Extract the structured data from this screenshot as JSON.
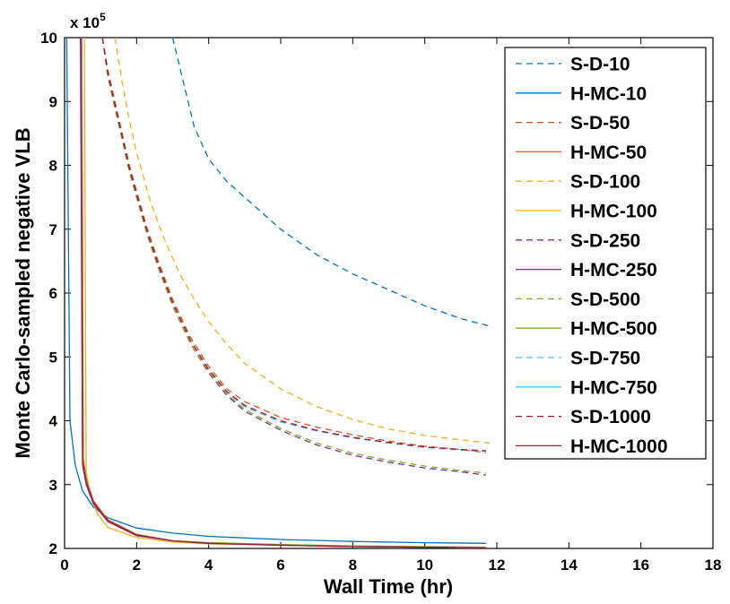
{
  "chart_data": {
    "type": "line",
    "title": "",
    "xlabel": "Wall Time (hr)",
    "ylabel": "Monte Carlo-sampled negative VLB",
    "y_multiplier": "x 10",
    "y_multiplier_exp": "5",
    "xlim": [
      0,
      18
    ],
    "ylim": [
      2,
      10
    ],
    "xticks": [
      "0",
      "2",
      "4",
      "6",
      "8",
      "10",
      "12",
      "14",
      "16",
      "18"
    ],
    "yticks": [
      "2",
      "3",
      "4",
      "5",
      "6",
      "7",
      "8",
      "9",
      "10"
    ],
    "legend_position": "top-right",
    "series": [
      {
        "name": "S-D-10",
        "color": "#0072BD",
        "dashed": true,
        "x": [
          3.0,
          3.3,
          3.6,
          4.0,
          4.5,
          5.0,
          6.0,
          7.0,
          8.0,
          9.0,
          10.0,
          11.0,
          11.8
        ],
        "y": [
          10.0,
          9.3,
          8.6,
          8.1,
          7.75,
          7.5,
          7.0,
          6.6,
          6.3,
          6.05,
          5.8,
          5.6,
          5.48
        ]
      },
      {
        "name": "H-MC-10",
        "color": "#0072BD",
        "dashed": false,
        "x": [
          0.06,
          0.15,
          0.3,
          0.5,
          0.8,
          1.2,
          2.0,
          3.0,
          4.0,
          6.0,
          8.0,
          10.0,
          11.7
        ],
        "y": [
          10.0,
          4.0,
          3.3,
          2.9,
          2.65,
          2.48,
          2.32,
          2.24,
          2.19,
          2.14,
          2.11,
          2.09,
          2.08
        ]
      },
      {
        "name": "S-D-50",
        "color": "#D95319",
        "dashed": true,
        "x": [
          1.05,
          1.2,
          1.4,
          1.6,
          1.8,
          2.0,
          2.3,
          2.6,
          3.0,
          3.5,
          4.0,
          4.5,
          5.0,
          6.0,
          7.0,
          8.0,
          9.0,
          10.0,
          11.0,
          11.7
        ],
        "y": [
          10.0,
          9.5,
          9.0,
          8.5,
          8.0,
          7.6,
          7.0,
          6.5,
          5.9,
          5.3,
          4.85,
          4.5,
          4.3,
          4.05,
          3.9,
          3.78,
          3.68,
          3.6,
          3.55,
          3.5
        ]
      },
      {
        "name": "H-MC-50",
        "color": "#D95319",
        "dashed": false,
        "x": [
          0.48,
          0.52,
          0.6,
          0.8,
          1.2,
          2.0,
          3.0,
          4.0,
          6.0,
          8.0,
          10.0,
          11.7
        ],
        "y": [
          10.0,
          3.4,
          3.1,
          2.75,
          2.45,
          2.22,
          2.12,
          2.09,
          2.06,
          2.03,
          2.02,
          2.02
        ]
      },
      {
        "name": "S-D-100",
        "color": "#EDB120",
        "dashed": true,
        "x": [
          1.4,
          1.6,
          1.8,
          2.0,
          2.4,
          2.8,
          3.2,
          3.6,
          4.0,
          4.5,
          5.0,
          6.0,
          7.0,
          8.0,
          9.0,
          10.0,
          11.0,
          11.8
        ],
        "y": [
          10.0,
          9.3,
          8.7,
          8.2,
          7.4,
          6.8,
          6.3,
          5.9,
          5.55,
          5.2,
          4.9,
          4.5,
          4.22,
          4.02,
          3.87,
          3.77,
          3.7,
          3.65
        ]
      },
      {
        "name": "H-MC-100",
        "color": "#EDB120",
        "dashed": false,
        "x": [
          0.55,
          0.6,
          0.7,
          0.9,
          1.2,
          2.0,
          3.0,
          4.0,
          6.0,
          8.0,
          10.0,
          11.7
        ],
        "y": [
          10.0,
          3.2,
          2.9,
          2.55,
          2.33,
          2.17,
          2.1,
          2.07,
          2.05,
          2.03,
          2.02,
          2.01
        ]
      },
      {
        "name": "S-D-250",
        "color": "#7E2F8E",
        "dashed": true,
        "x": [
          1.05,
          1.2,
          1.4,
          1.6,
          1.8,
          2.0,
          2.3,
          2.6,
          3.0,
          3.5,
          4.0,
          4.5,
          5.0,
          6.0,
          7.0,
          8.0,
          9.0,
          10.0,
          11.0,
          11.7
        ],
        "y": [
          10.0,
          9.4,
          8.9,
          8.4,
          7.9,
          7.5,
          6.9,
          6.4,
          5.8,
          5.2,
          4.75,
          4.4,
          4.15,
          3.85,
          3.62,
          3.46,
          3.35,
          3.26,
          3.2,
          3.15
        ]
      },
      {
        "name": "H-MC-250",
        "color": "#7E2F8E",
        "dashed": false,
        "x": [
          0.44,
          0.5,
          0.6,
          0.8,
          1.2,
          2.0,
          3.0,
          4.0,
          6.0,
          8.0,
          10.0,
          11.7
        ],
        "y": [
          10.0,
          3.3,
          3.0,
          2.7,
          2.42,
          2.2,
          2.12,
          2.08,
          2.05,
          2.03,
          2.02,
          2.01
        ]
      },
      {
        "name": "S-D-500",
        "color": "#77AC30",
        "dashed": true,
        "x": [
          1.05,
          1.2,
          1.4,
          1.6,
          1.8,
          2.0,
          2.3,
          2.6,
          3.0,
          3.5,
          4.0,
          4.5,
          5.0,
          6.0,
          7.0,
          8.0,
          9.0,
          10.0,
          11.0,
          11.7
        ],
        "y": [
          10.0,
          9.4,
          8.9,
          8.4,
          7.9,
          7.5,
          6.9,
          6.4,
          5.8,
          5.2,
          4.77,
          4.42,
          4.18,
          3.88,
          3.65,
          3.49,
          3.38,
          3.29,
          3.22,
          3.18
        ]
      },
      {
        "name": "H-MC-500",
        "color": "#77AC30",
        "dashed": false,
        "x": [
          0.46,
          0.5,
          0.6,
          0.8,
          1.2,
          2.0,
          3.0,
          4.0,
          6.0,
          8.0,
          10.0,
          11.7
        ],
        "y": [
          10.0,
          3.35,
          3.05,
          2.72,
          2.43,
          2.21,
          2.12,
          2.09,
          2.06,
          2.04,
          2.03,
          2.02
        ]
      },
      {
        "name": "S-D-750",
        "color": "#4DBEEE",
        "dashed": true,
        "x": [
          1.05,
          1.2,
          1.4,
          1.6,
          1.8,
          2.0,
          2.3,
          2.6,
          3.0,
          3.5,
          4.0,
          4.5,
          5.0,
          6.0,
          7.0,
          8.0,
          9.0,
          10.0,
          11.0,
          11.7
        ],
        "y": [
          10.0,
          9.45,
          8.95,
          8.45,
          7.95,
          7.55,
          6.95,
          6.45,
          5.85,
          5.25,
          4.8,
          4.45,
          4.22,
          3.98,
          3.84,
          3.73,
          3.65,
          3.58,
          3.54,
          3.52
        ]
      },
      {
        "name": "H-MC-750",
        "color": "#4DBEEE",
        "dashed": false,
        "x": [
          0.47,
          0.5,
          0.6,
          0.8,
          1.2,
          2.0,
          3.0,
          4.0,
          6.0,
          8.0,
          10.0,
          11.7
        ],
        "y": [
          10.0,
          3.35,
          3.05,
          2.72,
          2.43,
          2.21,
          2.12,
          2.08,
          2.05,
          2.03,
          2.02,
          2.01
        ]
      },
      {
        "name": "S-D-1000",
        "color": "#A2142F",
        "dashed": true,
        "x": [
          1.05,
          1.2,
          1.4,
          1.6,
          1.8,
          2.0,
          2.3,
          2.6,
          3.0,
          3.5,
          4.0,
          4.5,
          5.0,
          6.0,
          7.0,
          8.0,
          9.0,
          10.0,
          11.0,
          11.7
        ],
        "y": [
          10.0,
          9.45,
          8.95,
          8.45,
          7.95,
          7.55,
          6.95,
          6.45,
          5.85,
          5.25,
          4.8,
          4.46,
          4.24,
          4.0,
          3.85,
          3.74,
          3.66,
          3.59,
          3.55,
          3.53
        ]
      },
      {
        "name": "H-MC-1000",
        "color": "#A2142F",
        "dashed": false,
        "x": [
          0.45,
          0.5,
          0.6,
          0.8,
          1.2,
          2.0,
          3.0,
          4.0,
          6.0,
          8.0,
          10.0,
          11.7
        ],
        "y": [
          10.0,
          3.35,
          3.05,
          2.72,
          2.43,
          2.21,
          2.12,
          2.08,
          2.05,
          2.03,
          2.02,
          2.01
        ]
      }
    ]
  }
}
